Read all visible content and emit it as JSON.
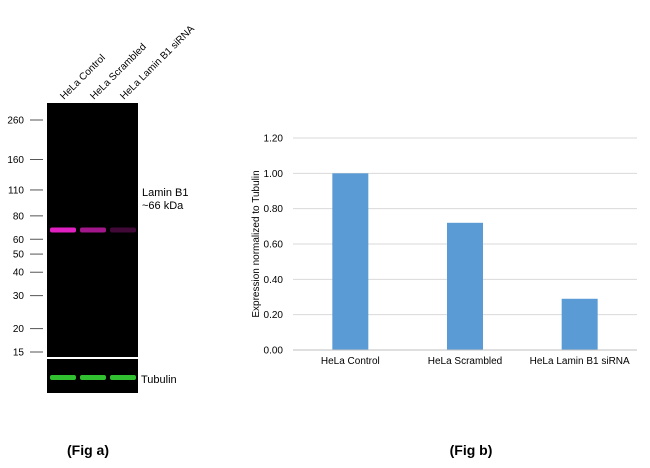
{
  "figure_a": {
    "caption": "(Fig a)",
    "lanes": [
      "HeLa Control",
      "HeLa Scrambled",
      "HeLa  Lamin B1 siRNA"
    ],
    "markers": [
      "260",
      "160",
      "110",
      "80",
      "60",
      "50",
      "40",
      "30",
      "20",
      "15"
    ],
    "marker_kda": [
      260,
      160,
      110,
      80,
      60,
      50,
      40,
      30,
      20,
      15
    ],
    "band_label_line1": "Lamin B1",
    "band_label_line2": "~66 kDa",
    "tubulin_label": "Tubulin",
    "band_color": "#e020c0",
    "tubulin_color": "#30c030",
    "lamin_intensity": [
      1.0,
      0.72,
      0.29
    ]
  },
  "figure_b": {
    "caption": "(Fig b)"
  },
  "chart_data": {
    "type": "bar",
    "categories": [
      "HeLa Control",
      "HeLa Scrambled",
      "HeLa Lamin B1 siRNA"
    ],
    "values": [
      1.0,
      0.72,
      0.29
    ],
    "title": "",
    "xlabel": "",
    "ylabel": "Expression normalized to Tubulin",
    "ylim": [
      0,
      1.2
    ],
    "yticks": [
      "0.00",
      "0.20",
      "0.40",
      "0.60",
      "0.80",
      "1.00",
      "1.20"
    ],
    "grid": true,
    "bar_color": "#5b9bd5"
  }
}
